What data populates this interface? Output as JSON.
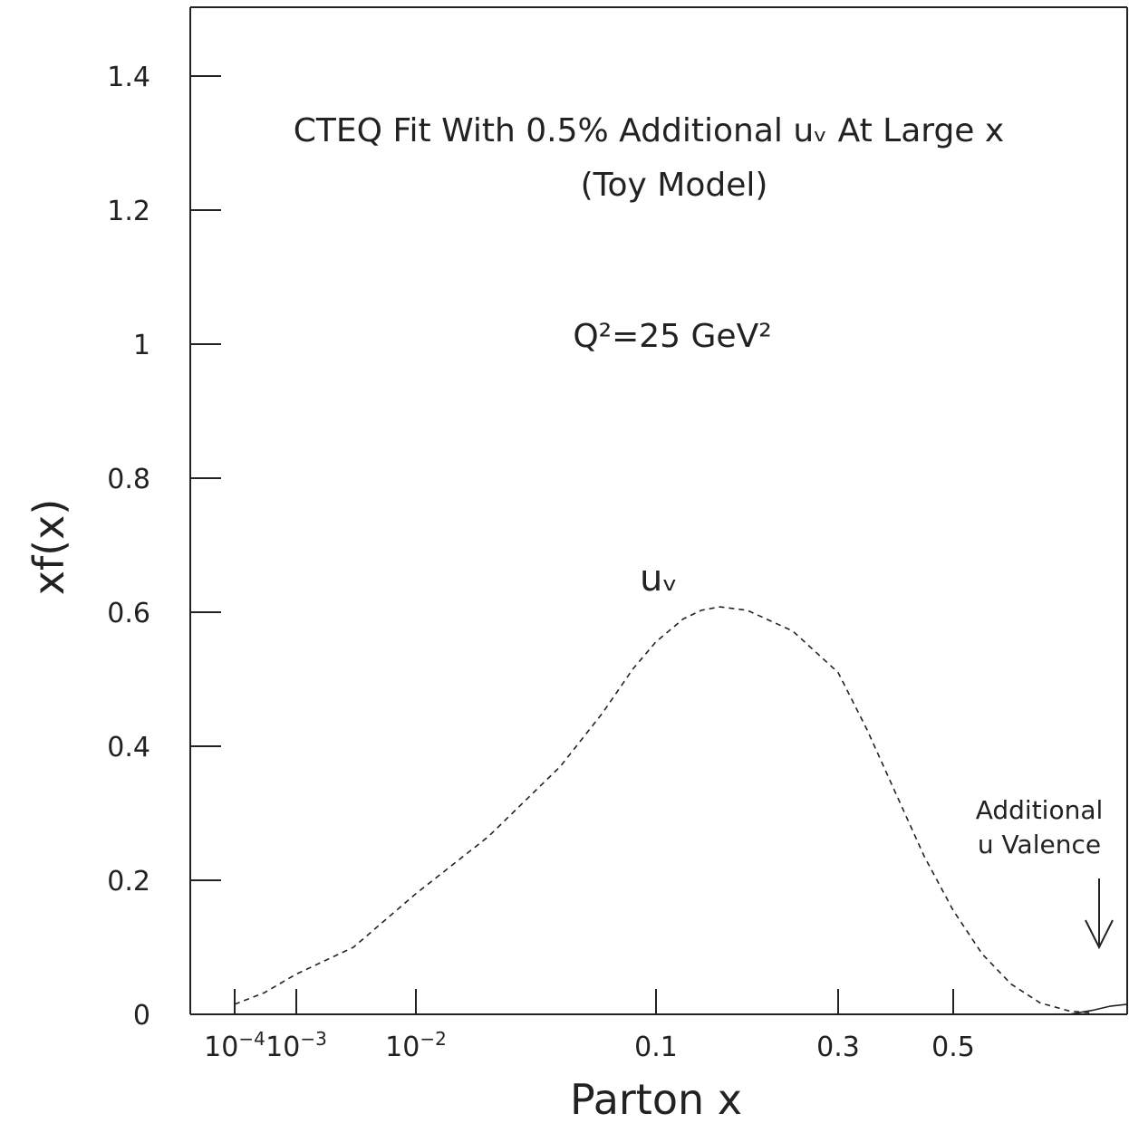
{
  "chart_data": {
    "type": "line",
    "title": "CTEQ Fit With 0.5% Additional uᵥ At Large x",
    "subtitle": "(Toy Model)",
    "scale_label": "Q²=25 GeV²",
    "xlabel": "Parton x",
    "ylabel": "xf(x)",
    "ylim": [
      0,
      1.5
    ],
    "y_ticks": [
      {
        "value": 0,
        "label": "0"
      },
      {
        "value": 0.2,
        "label": "0.2"
      },
      {
        "value": 0.4,
        "label": "0.4"
      },
      {
        "value": 0.6,
        "label": "0.6"
      },
      {
        "value": 0.8,
        "label": "0.8"
      },
      {
        "value": 1.0,
        "label": "1"
      },
      {
        "value": 1.2,
        "label": "1.2"
      },
      {
        "value": 1.4,
        "label": "1.4"
      }
    ],
    "x_ticks": [
      {
        "value": 0.0001,
        "base": "10",
        "exp": "−4"
      },
      {
        "value": 0.001,
        "base": "10",
        "exp": "−3"
      },
      {
        "value": 0.01,
        "base": "10",
        "exp": "−2"
      },
      {
        "value": 0.1,
        "label": "0.1"
      },
      {
        "value": 0.3,
        "label": "0.3"
      },
      {
        "value": 0.5,
        "label": "0.5"
      }
    ],
    "series": [
      {
        "name": "uᵥ",
        "style": "dashed",
        "points": [
          [
            0.0001,
            0.015
          ],
          [
            0.0003,
            0.032
          ],
          [
            0.001,
            0.06
          ],
          [
            0.003,
            0.1
          ],
          [
            0.01,
            0.18
          ],
          [
            0.02,
            0.265
          ],
          [
            0.04,
            0.37
          ],
          [
            0.06,
            0.45
          ],
          [
            0.08,
            0.515
          ],
          [
            0.1,
            0.556
          ],
          [
            0.13,
            0.59
          ],
          [
            0.15,
            0.603
          ],
          [
            0.17,
            0.608
          ],
          [
            0.2,
            0.603
          ],
          [
            0.25,
            0.572
          ],
          [
            0.3,
            0.51
          ],
          [
            0.35,
            0.425
          ],
          [
            0.4,
            0.33
          ],
          [
            0.45,
            0.235
          ],
          [
            0.5,
            0.155
          ],
          [
            0.55,
            0.09
          ],
          [
            0.6,
            0.045
          ],
          [
            0.65,
            0.017
          ],
          [
            0.7,
            0.005
          ],
          [
            0.74,
            0.002
          ]
        ]
      },
      {
        "name": "Additional u Valence",
        "style": "solid",
        "points": [
          [
            0.7,
            0.0
          ],
          [
            0.74,
            0.006
          ],
          [
            0.77,
            0.012
          ],
          [
            0.8,
            0.015
          ]
        ]
      }
    ],
    "annotations": {
      "curve_label": "uᵥ",
      "additional_line1": "Additional",
      "additional_line2": "u Valence"
    }
  }
}
